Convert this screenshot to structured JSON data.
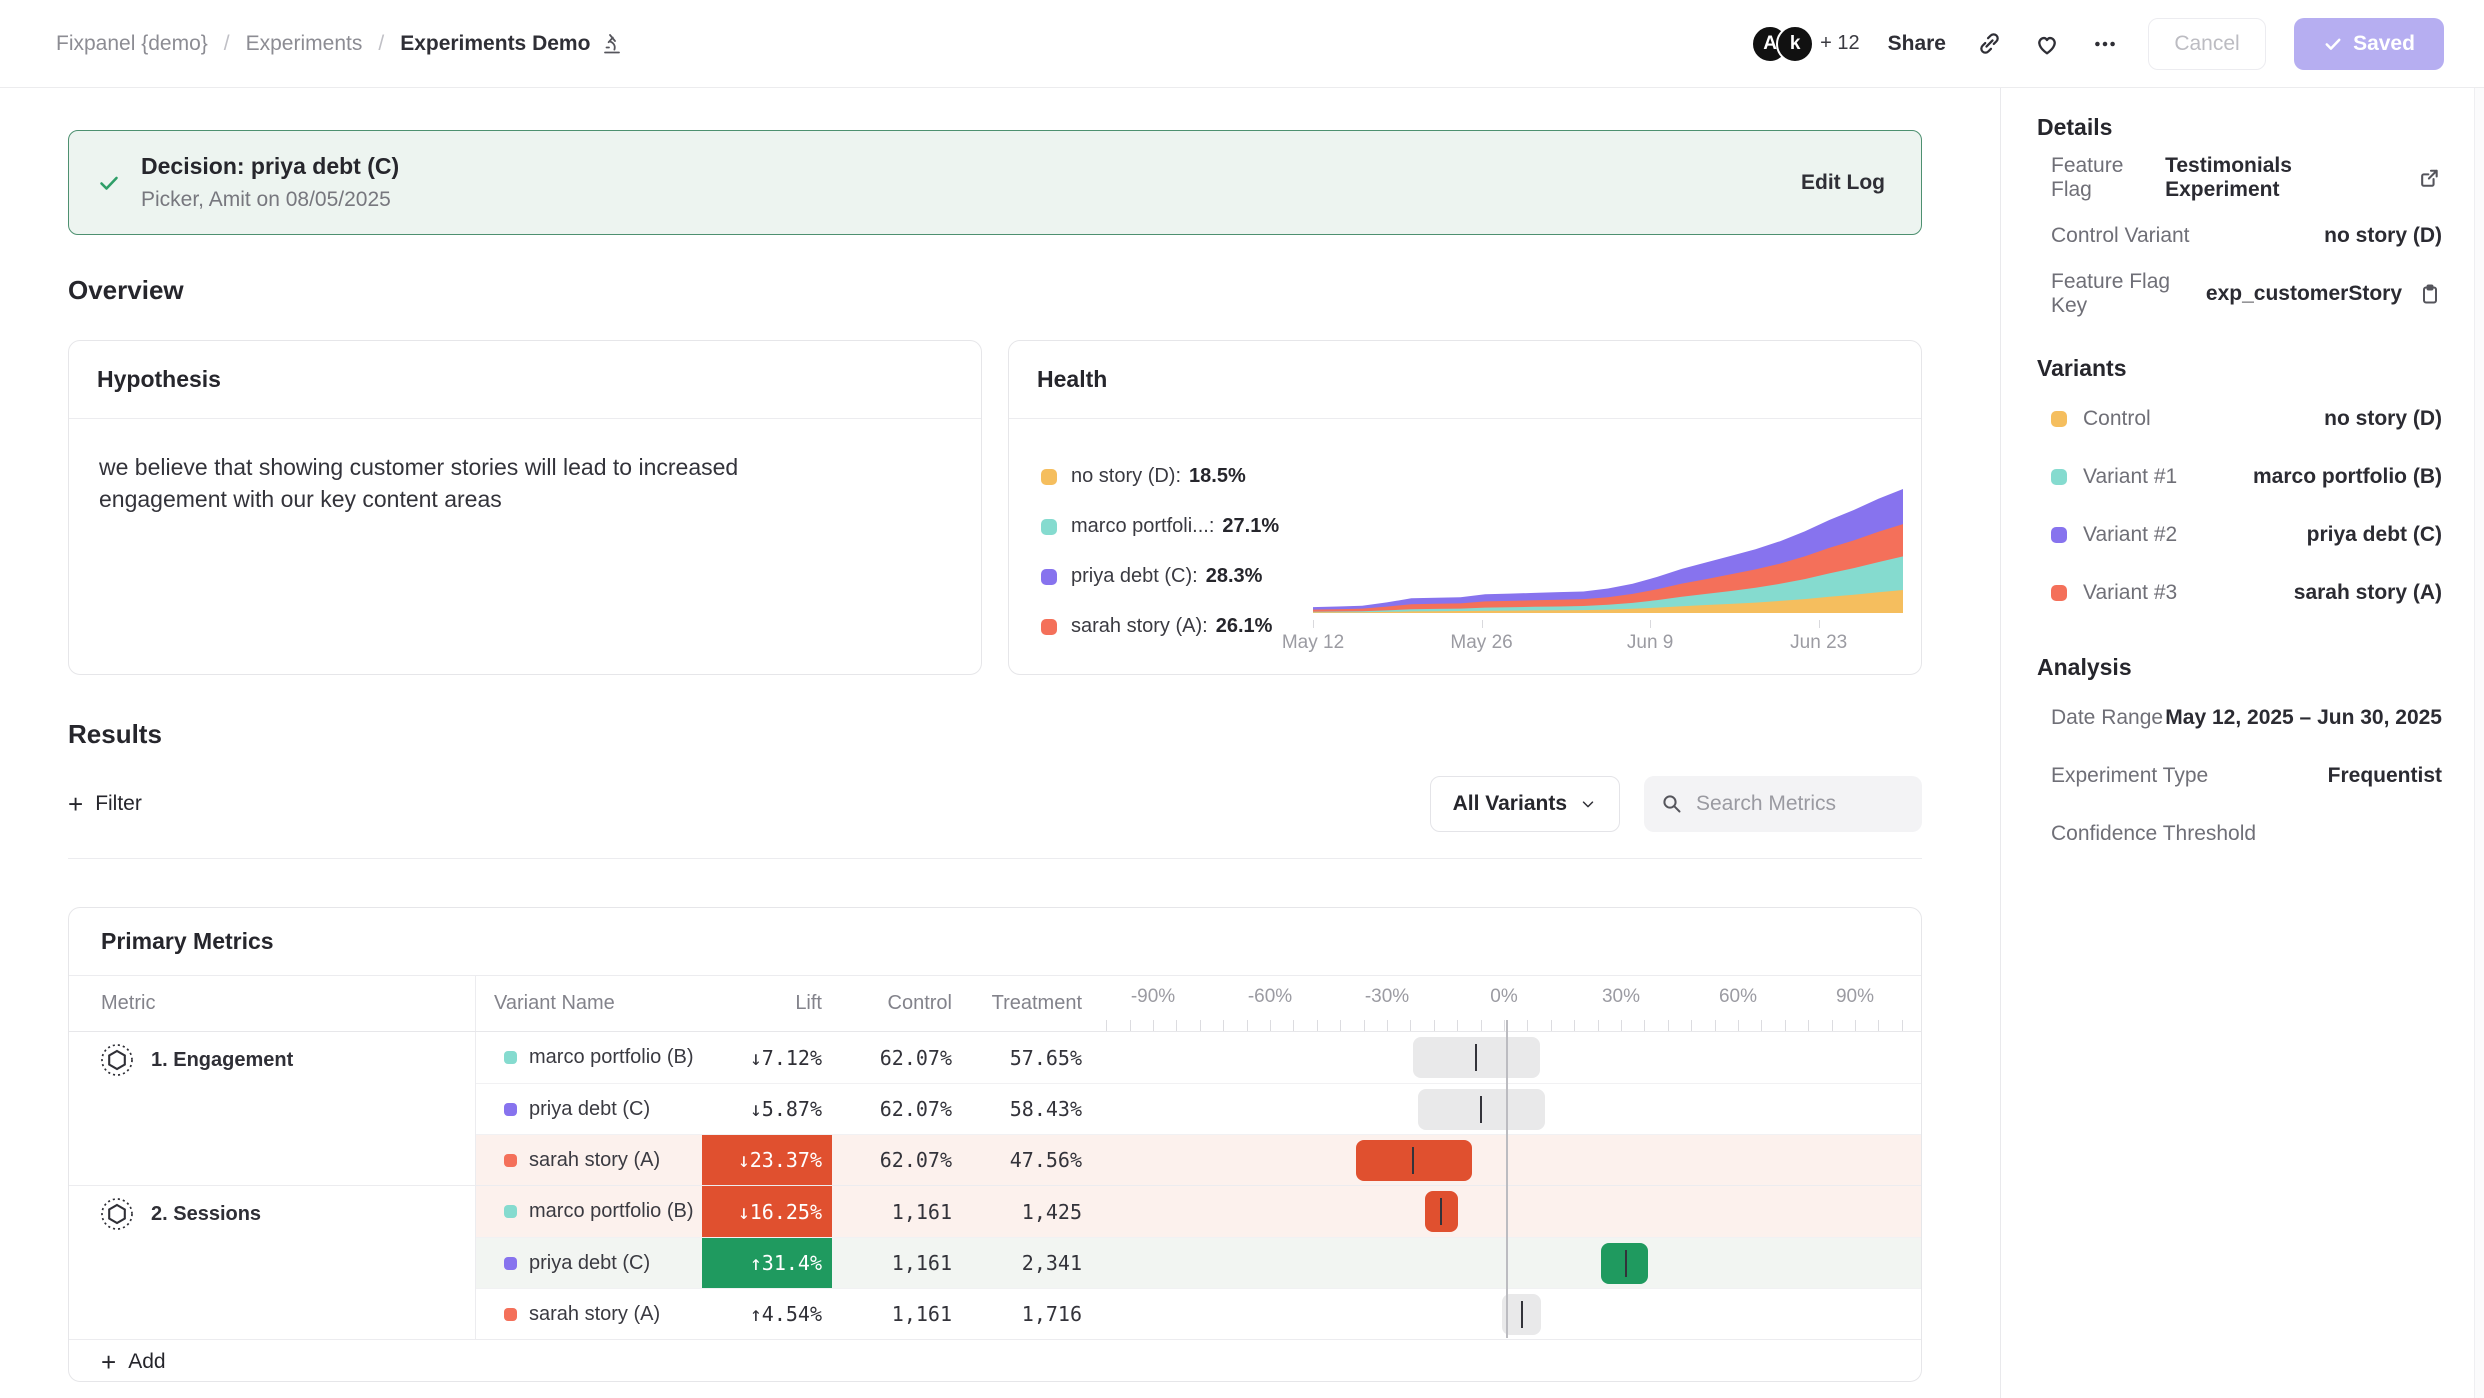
{
  "colors": {
    "yellow": "#F5BE5E",
    "teal": "#85DBCF",
    "purple": "#8773EE",
    "coral": "#F4705A",
    "badge_red": "#E0502F",
    "badge_green": "#1F9A5F",
    "banner_bg": "#EDF4F0",
    "banner_border": "#4D9070",
    "saved_btn": "#B6AEF1",
    "ci_gray": "#E9E9EA"
  },
  "topbar": {
    "breadcrumb": [
      "Fixpanel {demo}",
      "Experiments",
      "Experiments Demo"
    ],
    "separator": "/",
    "avatars": [
      "A",
      "k"
    ],
    "avatar_more": "+ 12",
    "share_label": "Share",
    "cancel_label": "Cancel",
    "saved_label": "Saved"
  },
  "banner": {
    "title": "Decision: priya debt (C)",
    "subtitle": "Picker, Amit on 08/05/2025",
    "action": "Edit Log"
  },
  "overview": {
    "heading": "Overview",
    "hypothesis": {
      "title": "Hypothesis",
      "body": "we believe that showing customer stories will lead to increased engagement with our key content areas"
    },
    "health": {
      "title": "Health",
      "legend": [
        {
          "label": "no story (D):",
          "value": "18.5%",
          "color": "#F5BE5E"
        },
        {
          "label": "marco portfoli...:",
          "value": "27.1%",
          "color": "#85DBCF"
        },
        {
          "label": "priya debt (C):",
          "value": "28.3%",
          "color": "#8773EE"
        },
        {
          "label": "sarah story (A):",
          "value": "26.1%",
          "color": "#F4705A"
        }
      ],
      "chart_data": {
        "type": "area",
        "stacked": true,
        "x_ticks": [
          {
            "label": "May 12",
            "day": 0
          },
          {
            "label": "May 26",
            "day": 14
          },
          {
            "label": "Jun 9",
            "day": 28
          },
          {
            "label": "Jun 23",
            "day": 42
          }
        ],
        "span_days": 49,
        "series": [
          {
            "name": "no story (D)",
            "color": "#F5BE5E",
            "values": [
              0.4,
              0.4,
              0.5,
              0.7,
              1.0,
              1.1,
              1.2,
              1.4,
              1.5,
              1.6,
              1.7,
              1.8,
              2.1,
              2.6,
              3.3,
              4.1,
              4.9,
              5.6,
              6.4,
              7.4,
              8.5,
              9.9,
              11.2,
              12.7,
              14.1
            ]
          },
          {
            "name": "marco portfolio (B)",
            "color": "#85DBCF",
            "values": [
              0.4,
              0.5,
              0.6,
              0.9,
              1.3,
              1.4,
              1.5,
              1.9,
              2.0,
              2.2,
              2.3,
              2.5,
              2.9,
              3.6,
              4.6,
              5.8,
              6.8,
              7.9,
              9.1,
              10.5,
              12.3,
              14.4,
              16.3,
              18.5,
              20.6
            ]
          },
          {
            "name": "sarah story (A)",
            "color": "#F4705A",
            "values": [
              1.3,
              1.4,
              1.6,
              2.3,
              3.1,
              3.2,
              3.2,
              3.8,
              3.9,
              4.0,
              4.1,
              4.2,
              4.7,
              5.5,
              6.7,
              8.1,
              9.1,
              10.2,
              11.2,
              12.4,
              13.9,
              15.6,
              17.0,
              18.6,
              19.8
            ]
          },
          {
            "name": "priya debt (C)",
            "color": "#8773EE",
            "values": [
              1.5,
              1.7,
              1.8,
              2.6,
              3.6,
              3.6,
              3.7,
              4.4,
              4.5,
              4.5,
              4.7,
              4.7,
              5.3,
              6.2,
              7.5,
              9.0,
              10.2,
              11.3,
              12.4,
              13.7,
              15.3,
              17.1,
              18.6,
              20.2,
              21.5
            ]
          }
        ]
      }
    }
  },
  "results": {
    "heading": "Results",
    "filter_label": "Filter",
    "variants_dropdown": "All Variants",
    "search_placeholder": "Search Metrics"
  },
  "primary_metrics": {
    "title": "Primary Metrics",
    "columns": {
      "metric": "Metric",
      "variant": "Variant Name",
      "lift": "Lift",
      "control": "Control",
      "treatment": "Treatment"
    },
    "axis_labels": [
      "-90%",
      "-60%",
      "-30%",
      "0%",
      "30%",
      "60%",
      "90%"
    ],
    "add_label": "Add",
    "groups": [
      {
        "name": "1. Engagement",
        "rows": [
          {
            "variant": "marco portfolio (B)",
            "color": "#85DBCF",
            "lift": "↓7.12%",
            "tone": "neutral",
            "control": "62.07%",
            "treatment": "57.65%",
            "ci": {
              "lo": -23.3,
              "hi": 9.2,
              "marker": -7.12
            }
          },
          {
            "variant": "priya debt (C)",
            "color": "#8773EE",
            "lift": "↓5.87%",
            "tone": "neutral",
            "control": "62.07%",
            "treatment": "58.43%",
            "ci": {
              "lo": -22.0,
              "hi": 10.4,
              "marker": -5.87
            }
          },
          {
            "variant": "sarah story (A)",
            "color": "#F4705A",
            "lift": "↓23.37%",
            "tone": "negative",
            "control": "62.07%",
            "treatment": "47.56%",
            "ci": {
              "lo": -38.0,
              "hi": -8.1,
              "marker": -23.37
            }
          }
        ]
      },
      {
        "name": "2. Sessions",
        "rows": [
          {
            "variant": "marco portfolio (B)",
            "color": "#85DBCF",
            "lift": "↓16.25%",
            "tone": "negative",
            "control": "1,161",
            "treatment": "1,425",
            "ci": {
              "lo": -20.3,
              "hi": -11.7,
              "marker": -16.25
            }
          },
          {
            "variant": "priya debt (C)",
            "color": "#8773EE",
            "lift": "↑31.4%",
            "tone": "positive",
            "control": "1,161",
            "treatment": "2,341",
            "ci": {
              "lo": 24.8,
              "hi": 36.9,
              "marker": 31.4
            }
          },
          {
            "variant": "sarah story (A)",
            "color": "#F4705A",
            "lift": "↑4.54%",
            "tone": "neutral",
            "control": "1,161",
            "treatment": "1,716",
            "ci": {
              "lo": -0.5,
              "hi": 9.5,
              "marker": 4.54
            }
          }
        ]
      }
    ]
  },
  "sidebar": {
    "details": {
      "heading": "Details",
      "rows": [
        {
          "label": "Feature Flag",
          "value": "Testimonials Experiment",
          "icon": "external-link"
        },
        {
          "label": "Control Variant",
          "value": "no story (D)",
          "icon": ""
        },
        {
          "label": "Feature Flag Key",
          "value": "exp_customerStory",
          "icon": "clipboard"
        }
      ]
    },
    "variants": {
      "heading": "Variants",
      "rows": [
        {
          "label": "Control",
          "value": "no story (D)",
          "color": "#F5BE5E"
        },
        {
          "label": "Variant #1",
          "value": "marco portfolio (B)",
          "color": "#85DBCF"
        },
        {
          "label": "Variant #2",
          "value": "priya debt (C)",
          "color": "#8773EE"
        },
        {
          "label": "Variant #3",
          "value": "sarah story (A)",
          "color": "#F4705A"
        }
      ]
    },
    "analysis": {
      "heading": "Analysis",
      "rows": [
        {
          "label": "Date Range",
          "value": "May 12, 2025 – Jun 30, 2025"
        },
        {
          "label": "Experiment Type",
          "value": "Frequentist"
        },
        {
          "label": "Confidence Threshold",
          "value": ""
        }
      ]
    }
  }
}
